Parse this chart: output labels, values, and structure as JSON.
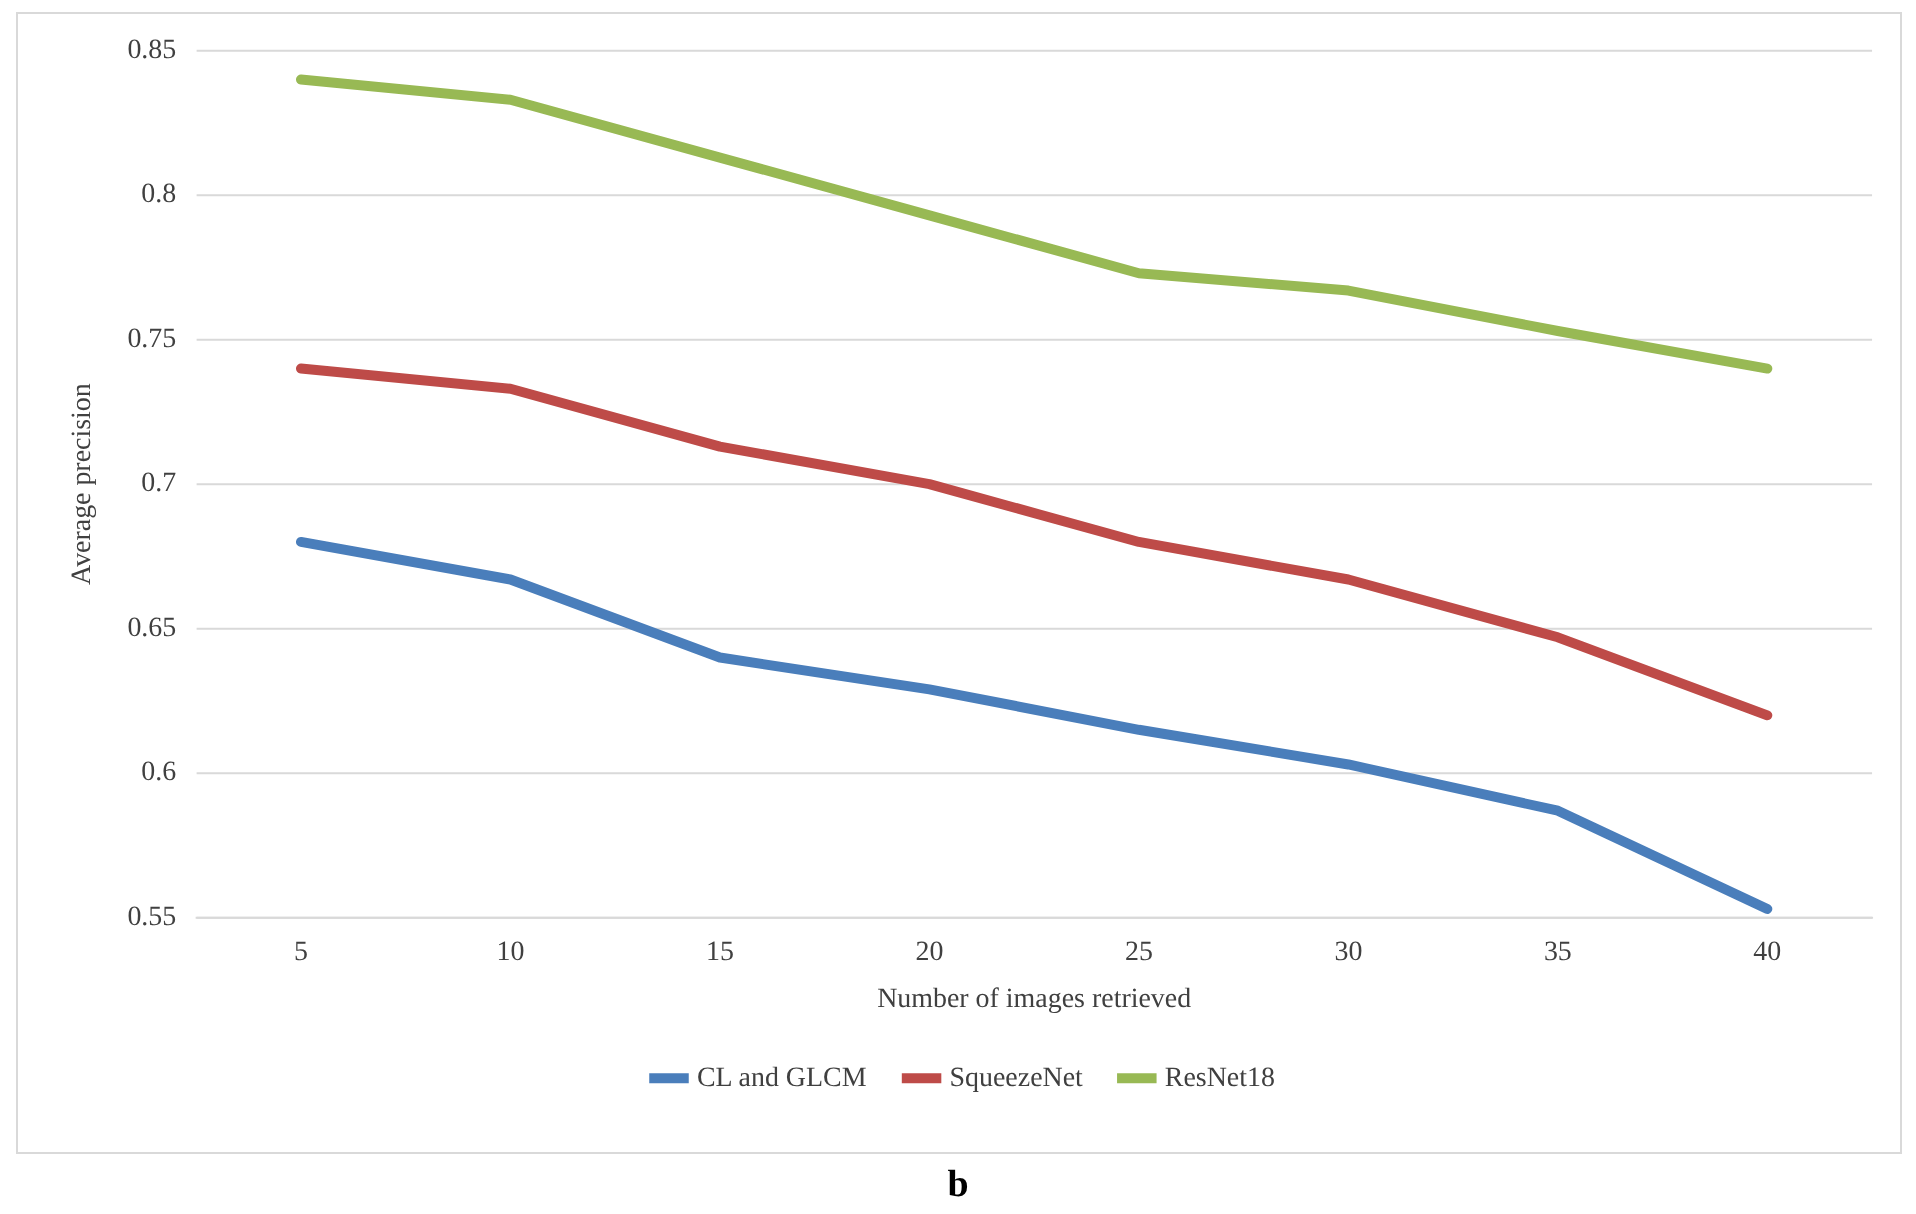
{
  "chart_data": {
    "type": "line",
    "xlabel": "Number of images retrieved",
    "ylabel": "Average precision",
    "categories": [
      "5",
      "10",
      "15",
      "20",
      "25",
      "30",
      "35",
      "40"
    ],
    "series": [
      {
        "name": "CL and GLCM",
        "color": "#4a7ebb",
        "values": [
          0.68,
          0.667,
          0.64,
          0.629,
          0.615,
          0.603,
          0.587,
          0.553
        ]
      },
      {
        "name": "SqueezeNet",
        "color": "#be4b48",
        "values": [
          0.74,
          0.733,
          0.713,
          0.7,
          0.68,
          0.667,
          0.647,
          0.62
        ]
      },
      {
        "name": "ResNet18",
        "color": "#98b954",
        "values": [
          0.84,
          0.833,
          0.813,
          0.793,
          0.773,
          0.767,
          0.753,
          0.74
        ]
      }
    ],
    "ylim": [
      0.55,
      0.85
    ],
    "yticks": [
      0.55,
      0.6,
      0.65,
      0.7,
      0.75,
      0.8,
      0.85
    ],
    "grid": "y",
    "legend": "bottom",
    "marker": "none",
    "line_style": "solid",
    "annotations": [
      "b"
    ]
  }
}
